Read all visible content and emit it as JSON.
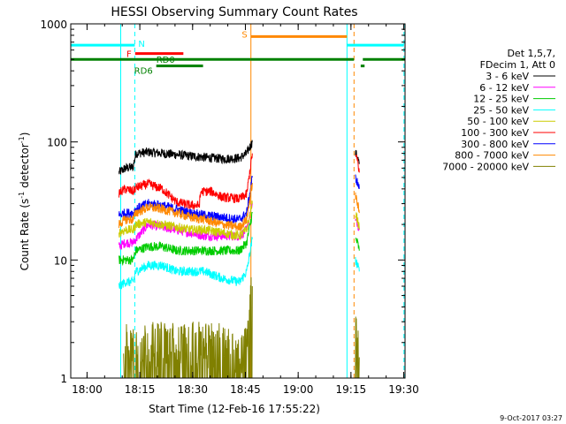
{
  "chart_data": {
    "type": "line",
    "title": "HESSI Observing Summary Count Rates",
    "xlabel": "Start Time (12-Feb-16 17:55:22)",
    "ylabel_main": "Count Rate (s",
    "ylabel_sup1": "-1",
    "ylabel_mid": " detector",
    "ylabel_sup2": "-1",
    "ylabel_end": ")",
    "yscale": "log",
    "ylim": [
      1,
      1000
    ],
    "xlim_minutes": [
      0,
      95
    ],
    "x_ticks": [
      {
        "minute": 4.63,
        "label": "18:00"
      },
      {
        "minute": 19.63,
        "label": "18:15"
      },
      {
        "minute": 34.63,
        "label": "18:30"
      },
      {
        "minute": 49.63,
        "label": "18:45"
      },
      {
        "minute": 64.63,
        "label": "19:00"
      },
      {
        "minute": 79.63,
        "label": "19:15"
      },
      {
        "minute": 94.63,
        "label": "19:30"
      }
    ],
    "y_ticks": [
      {
        "value": 1,
        "label": "1"
      },
      {
        "value": 10,
        "label": "10"
      },
      {
        "value": 100,
        "label": "100"
      },
      {
        "value": 1000,
        "label": "1000"
      }
    ],
    "legend": {
      "placement": "right",
      "header": [
        "Det 1,5,7,",
        "FDecim 1, Att 0"
      ],
      "entries": [
        {
          "label": "3 - 6 keV",
          "color": "#000000"
        },
        {
          "label": "6 - 12 keV",
          "color": "#ff00ff"
        },
        {
          "label": "12 - 25 keV",
          "color": "#00cc00"
        },
        {
          "label": "25 - 50 keV",
          "color": "#00ffff"
        },
        {
          "label": "50 - 100 keV",
          "color": "#cccc00"
        },
        {
          "label": "100 - 300 keV",
          "color": "#ff0000"
        },
        {
          "label": "300 - 800 keV",
          "color": "#0000ff"
        },
        {
          "label": "800 - 7000 keV",
          "color": "#ff8800"
        },
        {
          "label": "7000 - 20000 keV",
          "color": "#808000"
        }
      ]
    },
    "series": [
      {
        "name": "3 - 6 keV",
        "color": "#000000",
        "segments": [
          [
            [
              13.7,
              55
            ],
            [
              15.5,
              60
            ],
            [
              17.7,
              61
            ],
            [
              18.5,
              80
            ],
            [
              22,
              82
            ],
            [
              26,
              80
            ],
            [
              30,
              78
            ],
            [
              34,
              76
            ],
            [
              38,
              74
            ],
            [
              43,
              72
            ],
            [
              48,
              73
            ],
            [
              50,
              80
            ],
            [
              51.6,
              100
            ]
          ],
          [
            [
              80.9,
              80
            ],
            [
              81.5,
              75
            ],
            [
              82,
              65
            ]
          ]
        ]
      },
      {
        "name": "6 - 12 keV",
        "color": "#ff00ff",
        "segments": [
          [
            [
              13.7,
              13
            ],
            [
              15.5,
              14
            ],
            [
              17.7,
              14
            ],
            [
              18.5,
              15
            ],
            [
              22,
              20
            ],
            [
              26,
              19
            ],
            [
              30,
              18
            ],
            [
              34,
              17
            ],
            [
              38,
              16
            ],
            [
              43,
              16
            ],
            [
              48,
              16
            ],
            [
              50,
              18
            ],
            [
              51.6,
              30
            ]
          ],
          [
            [
              80.9,
              22
            ],
            [
              81.5,
              20
            ],
            [
              82,
              18
            ]
          ]
        ]
      },
      {
        "name": "12 - 25 keV",
        "color": "#00cc00",
        "segments": [
          [
            [
              13.7,
              10
            ],
            [
              15.5,
              10
            ],
            [
              17.7,
              10
            ],
            [
              18.5,
              12
            ],
            [
              22,
              13
            ],
            [
              26,
              13
            ],
            [
              30,
              12
            ],
            [
              34,
              12
            ],
            [
              38,
              12
            ],
            [
              43,
              12
            ],
            [
              48,
              12
            ],
            [
              50,
              14
            ],
            [
              51.6,
              25
            ]
          ],
          [
            [
              80.9,
              15
            ],
            [
              81.5,
              14
            ],
            [
              82,
              12
            ]
          ]
        ]
      },
      {
        "name": "25 - 50 keV",
        "color": "#00ffff",
        "segments": [
          [
            [
              13.7,
              6
            ],
            [
              15.5,
              6.5
            ],
            [
              17.7,
              6.5
            ],
            [
              18.5,
              8
            ],
            [
              22,
              9
            ],
            [
              26,
              9
            ],
            [
              30,
              8
            ],
            [
              34,
              8
            ],
            [
              38,
              8
            ],
            [
              43,
              7
            ],
            [
              48,
              6.5
            ],
            [
              50,
              8
            ],
            [
              51.6,
              15
            ]
          ],
          [
            [
              80.9,
              10
            ],
            [
              81.5,
              9
            ],
            [
              82,
              8
            ]
          ]
        ]
      },
      {
        "name": "50 - 100 keV",
        "color": "#cccc00",
        "segments": [
          [
            [
              13.7,
              17
            ],
            [
              15.5,
              18
            ],
            [
              17.7,
              18
            ],
            [
              18.5,
              20
            ],
            [
              22,
              21
            ],
            [
              26,
              20
            ],
            [
              30,
              19
            ],
            [
              34,
              18
            ],
            [
              38,
              18
            ],
            [
              43,
              17
            ],
            [
              48,
              16
            ],
            [
              50,
              18
            ],
            [
              51.6,
              30
            ]
          ],
          [
            [
              80.9,
              25
            ],
            [
              81.5,
              22
            ],
            [
              82,
              18
            ]
          ]
        ]
      },
      {
        "name": "100 - 300 keV",
        "color": "#ff0000",
        "segments": [
          [
            [
              13.7,
              37
            ],
            [
              15.5,
              40
            ],
            [
              17.7,
              38
            ],
            [
              18.5,
              41
            ],
            [
              22,
              44
            ],
            [
              26,
              40
            ],
            [
              30,
              31
            ],
            [
              34,
              29
            ],
            [
              36.5,
              29
            ],
            [
              37,
              38
            ],
            [
              40,
              38
            ],
            [
              43,
              34
            ],
            [
              48,
              33
            ],
            [
              50,
              36
            ],
            [
              51.6,
              80
            ]
          ],
          [
            [
              80.9,
              75
            ],
            [
              81.5,
              70
            ],
            [
              82,
              55
            ]
          ]
        ]
      },
      {
        "name": "300 - 800 keV",
        "color": "#0000ff",
        "segments": [
          [
            [
              13.7,
              24
            ],
            [
              15.5,
              25
            ],
            [
              17.7,
              25
            ],
            [
              18.5,
              27
            ],
            [
              22,
              30
            ],
            [
              26,
              29
            ],
            [
              30,
              27
            ],
            [
              34,
              25
            ],
            [
              38,
              24
            ],
            [
              43,
              23
            ],
            [
              48,
              22
            ],
            [
              50,
              25
            ],
            [
              51.6,
              50
            ]
          ],
          [
            [
              80.9,
              50
            ],
            [
              81.5,
              45
            ],
            [
              82,
              40
            ]
          ]
        ]
      },
      {
        "name": "800 - 7000 keV",
        "color": "#ff8800",
        "segments": [
          [
            [
              13.7,
              20
            ],
            [
              15.5,
              22
            ],
            [
              17.7,
              22
            ],
            [
              18.5,
              25
            ],
            [
              22,
              28
            ],
            [
              26,
              27
            ],
            [
              30,
              25
            ],
            [
              34,
              23
            ],
            [
              38,
              22
            ],
            [
              43,
              20
            ],
            [
              48,
              19
            ],
            [
              50,
              22
            ],
            [
              51.6,
              45
            ]
          ],
          [
            [
              80.9,
              35
            ],
            [
              81.5,
              30
            ],
            [
              82,
              25
            ]
          ]
        ]
      },
      {
        "name": "7000 - 20000 keV",
        "color": "#808000",
        "segments": [
          [
            [
              15,
              2
            ],
            [
              20,
              2
            ],
            [
              25,
              2
            ],
            [
              30,
              2
            ],
            [
              35,
              2
            ],
            [
              40,
              2
            ],
            [
              44,
              2
            ],
            [
              48,
              1.5
            ],
            [
              50,
              2.5
            ],
            [
              51.6,
              6
            ]
          ],
          [
            [
              80.9,
              3
            ],
            [
              81.5,
              2
            ],
            [
              82,
              1.5
            ]
          ]
        ]
      }
    ],
    "annotations": {
      "vlines_solid": [
        {
          "minute": 0,
          "color": "#00ffff"
        },
        {
          "minute": 14.2,
          "color": "#00ffff"
        },
        {
          "minute": 51.2,
          "color": "#ff8800"
        },
        {
          "minute": 78.5,
          "color": "#00ffff"
        }
      ],
      "vlines_dashed": [
        {
          "minute": 18.2,
          "color": "#00ffff"
        },
        {
          "minute": 80.5,
          "color": "#ff8800"
        },
        {
          "minute": 94.7,
          "color": "#00ffff"
        }
      ],
      "bars": [
        {
          "label": "N",
          "color": "#00ffff",
          "y_value": 660,
          "segments": [
            [
              0,
              18.2
            ],
            [
              78.5,
              94.7
            ]
          ]
        },
        {
          "label": "S",
          "color": "#ff8800",
          "y_value": 780,
          "segments": [
            [
              51.2,
              78.5
            ]
          ]
        },
        {
          "label": "F",
          "color": "#ff0000",
          "y_value": 560,
          "segments": [
            [
              18.3,
              32.0
            ]
          ]
        },
        {
          "label": "RD0",
          "color": "#008000",
          "y_value": 500,
          "segments": [
            [
              0,
              51.2
            ],
            [
              51.2,
              80.5
            ],
            [
              83.0,
              95.0
            ]
          ]
        },
        {
          "label": "RD6",
          "color": "#008000",
          "y_value": 440,
          "segments": [
            [
              24.3,
              37.6
            ],
            [
              82.4,
              83.5
            ]
          ]
        }
      ]
    }
  },
  "footer": {
    "timestamp": "9-Oct-2017 03:27"
  }
}
